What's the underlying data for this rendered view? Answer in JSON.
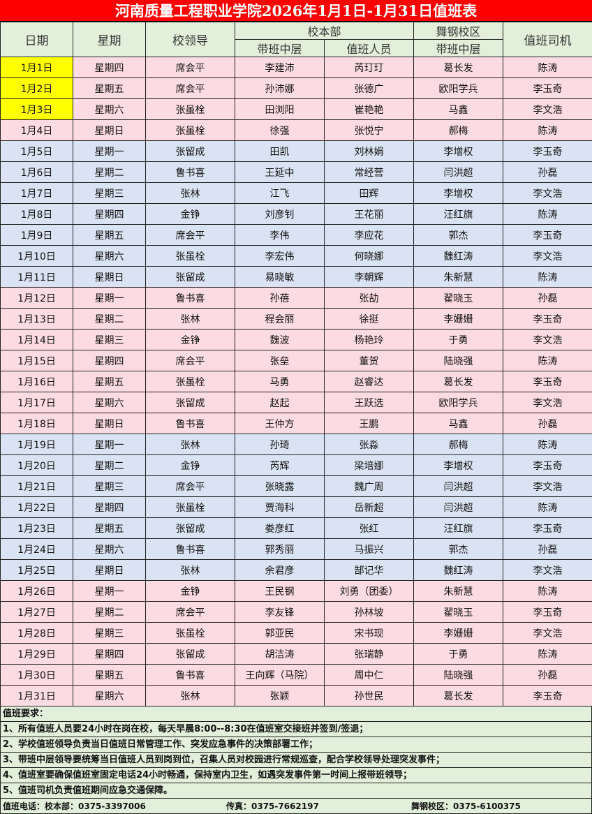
{
  "title": "河南质量工程职业学院2026年1月1日-1月31日值班表",
  "headers": {
    "date": "日期",
    "weekday": "星期",
    "leader": "校领导",
    "main_campus": "校本部",
    "main_mid": "带班中层",
    "main_staff": "值班人员",
    "wugang": "舞钢校区",
    "wugang_mid": "带班中层",
    "driver": "值班司机"
  },
  "colors": {
    "title_bg": "#ff0000",
    "header_bg": "#e2efda",
    "pink": "#fcdce2",
    "blue": "#dae3f3",
    "highlight": "#ffff00"
  },
  "rows": [
    [
      "1月1日",
      "星期四",
      "席会平",
      "李建沛",
      "芮玎玎",
      "葛长发",
      "陈涛",
      "pink",
      1
    ],
    [
      "1月2日",
      "星期五",
      "席会平",
      "孙沛娜",
      "张德广",
      "欧阳学兵",
      "李玉奇",
      "pink",
      1
    ],
    [
      "1月3日",
      "星期六",
      "张虽栓",
      "田浏阳",
      "崔艳艳",
      "马鑫",
      "李文浩",
      "pink",
      1
    ],
    [
      "1月4日",
      "星期日",
      "张虽栓",
      "徐强",
      "张悦宁",
      "郝梅",
      "陈涛",
      "pink",
      0
    ],
    [
      "1月5日",
      "星期一",
      "张留成",
      "田凯",
      "刘林娟",
      "李增权",
      "李玉奇",
      "blue",
      0
    ],
    [
      "1月6日",
      "星期二",
      "鲁书喜",
      "王延中",
      "常经营",
      "闫洪超",
      "孙磊",
      "blue",
      0
    ],
    [
      "1月7日",
      "星期三",
      "张林",
      "江飞",
      "田辉",
      "李增权",
      "李文浩",
      "blue",
      0
    ],
    [
      "1月8日",
      "星期四",
      "金铮",
      "刘彦钊",
      "王花丽",
      "汪红旗",
      "陈涛",
      "blue",
      0
    ],
    [
      "1月9日",
      "星期五",
      "席会平",
      "李伟",
      "李应花",
      "郭杰",
      "李玉奇",
      "blue",
      0
    ],
    [
      "1月10日",
      "星期六",
      "张虽栓",
      "李宏伟",
      "何晓娜",
      "魏红涛",
      "李文浩",
      "blue",
      0
    ],
    [
      "1月11日",
      "星期日",
      "张留成",
      "易晓敏",
      "李朝辉",
      "朱新慧",
      "陈涛",
      "blue",
      0
    ],
    [
      "1月12日",
      "星期一",
      "鲁书喜",
      "孙蓓",
      "张劼",
      "翟晓玉",
      "孙磊",
      "pink",
      0
    ],
    [
      "1月13日",
      "星期二",
      "张林",
      "程会丽",
      "徐挺",
      "李姗姗",
      "李玉奇",
      "pink",
      0
    ],
    [
      "1月14日",
      "星期三",
      "金铮",
      "魏波",
      "杨艳玲",
      "于勇",
      "李文浩",
      "pink",
      0
    ],
    [
      "1月15日",
      "星期四",
      "席会平",
      "张垒",
      "董贺",
      "陆晓强",
      "陈涛",
      "pink",
      0
    ],
    [
      "1月16日",
      "星期五",
      "张虽栓",
      "马勇",
      "赵睿达",
      "葛长发",
      "李玉奇",
      "pink",
      0
    ],
    [
      "1月17日",
      "星期六",
      "张留成",
      "赵起",
      "王跃选",
      "欧阳学兵",
      "李文浩",
      "pink",
      0
    ],
    [
      "1月18日",
      "星期日",
      "鲁书喜",
      "王仲方",
      "王鹏",
      "马鑫",
      "孙磊",
      "pink",
      0
    ],
    [
      "1月19日",
      "星期一",
      "张林",
      "孙琦",
      "张淼",
      "郝梅",
      "陈涛",
      "blue",
      0
    ],
    [
      "1月20日",
      "星期二",
      "金铮",
      "芮辉",
      "梁培娜",
      "李增权",
      "李玉奇",
      "blue",
      0
    ],
    [
      "1月21日",
      "星期三",
      "席会平",
      "张晓露",
      "魏广周",
      "闫洪超",
      "李文浩",
      "blue",
      0
    ],
    [
      "1月22日",
      "星期四",
      "张虽栓",
      "贾海科",
      "岳新超",
      "闫洪超",
      "陈涛",
      "blue",
      0
    ],
    [
      "1月23日",
      "星期五",
      "张留成",
      "娄彦红",
      "张红",
      "汪红旗",
      "李玉奇",
      "blue",
      0
    ],
    [
      "1月24日",
      "星期六",
      "鲁书喜",
      "郭秀丽",
      "马振兴",
      "郭杰",
      "孙磊",
      "blue",
      0
    ],
    [
      "1月25日",
      "星期日",
      "张林",
      "余君彦",
      "郜记华",
      "魏红涛",
      "李文浩",
      "blue",
      0
    ],
    [
      "1月26日",
      "星期一",
      "金铮",
      "王民钢",
      "刘勇（团委）",
      "朱新慧",
      "陈涛",
      "pink",
      0
    ],
    [
      "1月27日",
      "星期二",
      "席会平",
      "李友锋",
      "孙林坡",
      "翟晓玉",
      "李玉奇",
      "pink",
      0
    ],
    [
      "1月28日",
      "星期三",
      "张虽栓",
      "郭亚民",
      "宋书现",
      "李姗姗",
      "李文浩",
      "pink",
      0
    ],
    [
      "1月29日",
      "星期四",
      "张留成",
      "胡洁涛",
      "张瑞静",
      "于勇",
      "陈涛",
      "pink",
      0
    ],
    [
      "1月30日",
      "星期五",
      "鲁书喜",
      "王向辉（马院）",
      "周中仁",
      "陆晓强",
      "孙磊",
      "pink",
      0
    ],
    [
      "1月31日",
      "星期六",
      "张林",
      "张颖",
      "孙世民",
      "葛长发",
      "李玉奇",
      "pink",
      0
    ]
  ],
  "notes": {
    "heading": "值班要求：",
    "items": [
      "1、所有值班人员要24小时在岗在校，每天早晨8:00--8:30在值班室交接班并签到/签退；",
      "2、学校值班领导负责当日值班日常管理工作、突发应急事件的决策部署工作；",
      "3、带班中层领导要统筹当日值班人员到岗到位，召集人员对校园进行常规巡查，配合学校领导处理突发事件；",
      "4、值班室要确保值班室固定电话24小时畅通，保持室内卫生，如遇突发事件第一时间上报带班领导；",
      "5、值班司机负责值班期间应急交通保障。"
    ]
  },
  "contact": {
    "phone": "值班电话：校本部：0375-3397006",
    "fax": "传真：0375-7662197",
    "wugang": "舞钢校区：0375-6100375"
  }
}
